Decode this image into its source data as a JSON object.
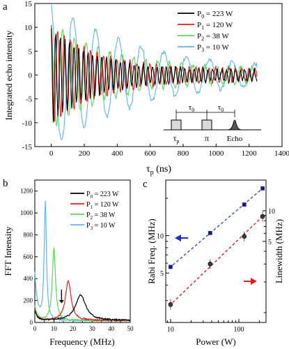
{
  "panels": {
    "a": "a",
    "b": "b",
    "c": "c"
  },
  "legend_power": [
    {
      "sym": "P",
      "sub": "0",
      "rest": " = 223 W",
      "color": "#000000"
    },
    {
      "sym": "P",
      "sub": "1",
      "rest": " = 120 W",
      "color": "#e0201b"
    },
    {
      "sym": "P",
      "sub": "2",
      "rest": " =  38 W",
      "color": "#58d858"
    },
    {
      "sym": "P",
      "sub": "3",
      "rest": " =  10 W",
      "color": "#5cb6ee"
    }
  ],
  "chart_data": [
    {
      "panel": "a",
      "type": "line",
      "xlabel": "τp (ns)",
      "xlabel_parts": {
        "sym": "τ",
        "sub": "p",
        "rest": " (ns)"
      },
      "ylabel": "Integrated echo intensity",
      "xlim": [
        -100,
        1400
      ],
      "ylim": [
        -15,
        15
      ],
      "xticks": [
        0,
        200,
        400,
        600,
        800,
        1000,
        1200,
        1400
      ],
      "yticks": [
        -15,
        -10,
        -5,
        0,
        5,
        10,
        15
      ],
      "x_range_data": [
        0,
        1250
      ],
      "series": [
        {
          "name": "P0 = 223 W",
          "color": "#000000",
          "period_ns": 28,
          "amplitude": 9.0,
          "decay_ns": 260,
          "floor": 1.1
        },
        {
          "name": "P1 = 120 W",
          "color": "#e0201b",
          "period_ns": 40,
          "amplitude": 9.5,
          "decay_ns": 300,
          "floor": 1.1
        },
        {
          "name": "P2 =  38 W",
          "color": "#58d858",
          "period_ns": 72,
          "amplitude": 10.0,
          "decay_ns": 360,
          "floor": 1.2
        },
        {
          "name": "P3 =  10 W",
          "color": "#5cb6ee",
          "period_ns": 138,
          "amplitude": 14.5,
          "decay_ns": 520,
          "floor": 1.0
        }
      ],
      "pulse_labels": {
        "tau0": "τ0",
        "tau0_sub": "0",
        "taup_sym": "τ",
        "taup_sub": "p",
        "pi": "π",
        "echo": "Echo"
      }
    },
    {
      "panel": "b",
      "type": "line",
      "xlabel": "Frequency (MHz)",
      "ylabel": "FFT Intensity",
      "xlim": [
        0,
        50
      ],
      "ylim": [
        0,
        1300
      ],
      "xticks": [
        0,
        5,
        10,
        15,
        20,
        25,
        30,
        35,
        40,
        45,
        50
      ],
      "xtick_labels": [
        "0",
        "10",
        "20",
        "30",
        "40",
        "50"
      ],
      "yticks": [
        0,
        200,
        400,
        600,
        800,
        1000,
        1200
      ],
      "series": [
        {
          "name": "P0 = 223 W",
          "color": "#000000",
          "peak_mhz": 24,
          "peak_value": 235,
          "width_mhz": 3.2
        },
        {
          "name": "P1 = 120 W",
          "color": "#e0201b",
          "peak_mhz": 17.5,
          "peak_value": 360,
          "width_mhz": 1.8
        },
        {
          "name": "P2 =  38 W",
          "color": "#58d858",
          "peak_mhz": 10,
          "peak_value": 660,
          "width_mhz": 1.0
        },
        {
          "name": "P3 =  10 W",
          "color": "#5cb6ee",
          "peak_mhz": 5.5,
          "peak_value": 1090,
          "width_mhz": 0.7
        }
      ],
      "arrow_at_mhz": 14,
      "inset_peak": {
        "x": 14.5,
        "y": 150
      }
    },
    {
      "panel": "c",
      "type": "scatter",
      "xlabel": "Power (W)",
      "ylabel_left": "Rabi Freq. (MHz)",
      "ylabel_right": "Linewidth (MHz)",
      "x_scale": "log",
      "y_scale": "log",
      "xlim": [
        8.5,
        250
      ],
      "ylim_left": [
        2.0,
        28
      ],
      "ylim_right": [
        0.8,
        20
      ],
      "xtick_labels": [
        "10",
        "100"
      ],
      "ytick_labels_left": [
        "5",
        "10"
      ],
      "ytick_labels_right": [
        "5",
        "10"
      ],
      "rabi": {
        "color": "#1a2fd6",
        "x": [
          10,
          38,
          120,
          223
        ],
        "y": [
          5.6,
          10.5,
          17.8,
          24.0
        ]
      },
      "linewidth": {
        "color": "#222222",
        "x": [
          10,
          38,
          120,
          223
        ],
        "y": [
          1.2,
          3.0,
          5.6,
          8.8
        ]
      },
      "fit_rabi_color": "#2d4fd8",
      "fit_linewidth_color": "#d92020"
    }
  ]
}
